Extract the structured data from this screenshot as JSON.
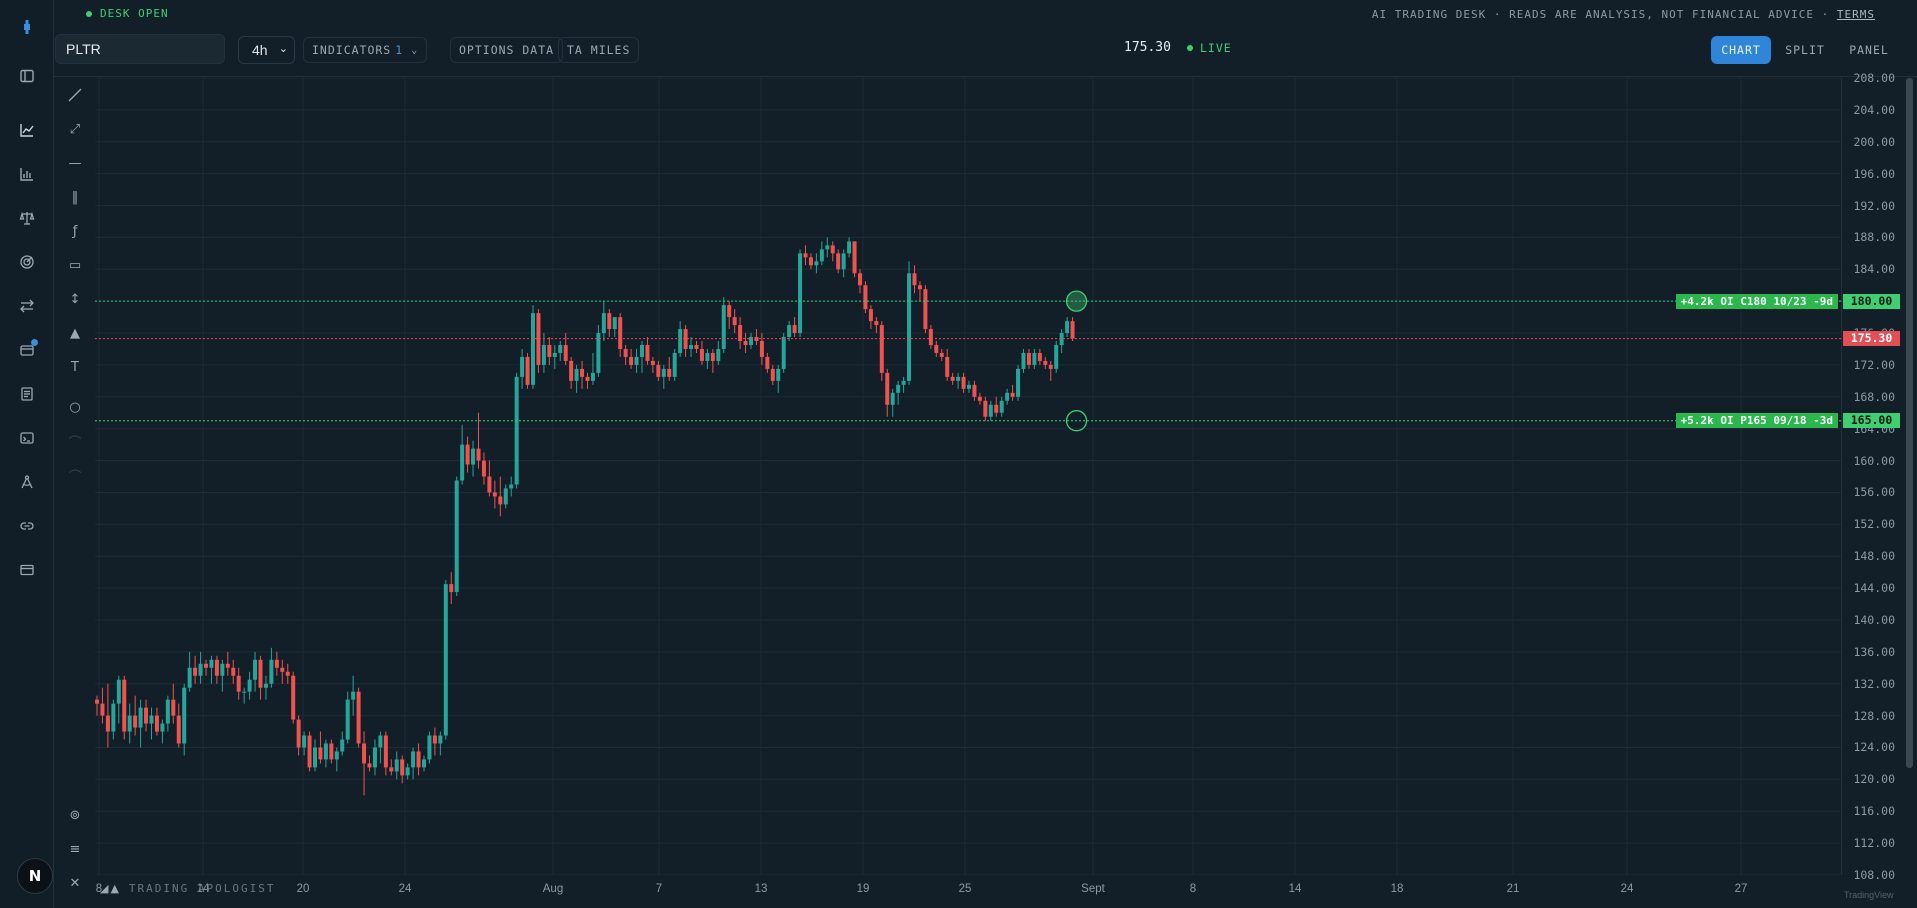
{
  "header": {
    "desk_status": "DESK OPEN",
    "disclaimer": "AI TRADING DESK · READS ARE ANALYSIS, NOT FINANCIAL ADVICE ·",
    "terms": "TERMS"
  },
  "toolbar": {
    "symbol": "PLTR",
    "timeframe": "4h",
    "indicators_label": "INDICATORS",
    "indicators_count": "1",
    "options_data": "OPTIONS DATA",
    "ta_miles": "TA MILES",
    "price": "175.30",
    "live": "LIVE",
    "views": {
      "chart": "CHART",
      "split": "SPLIT",
      "panel": "PANEL"
    }
  },
  "colors": {
    "up": "#26a69a",
    "down": "#ef5350",
    "accent": "#2f86d8",
    "live": "#3ecf72",
    "level_green": "#3ecf72",
    "current_red": "#e44f55"
  },
  "left_rail": {
    "icons": [
      "logo-icon",
      "sidebar-toggle-icon",
      "line-chart-icon",
      "bar-chart-icon",
      "scales-icon",
      "radar-icon",
      "swap-icon",
      "wallet-icon",
      "document-icon",
      "terminal-icon",
      "compass-icon",
      "link-icon",
      "card-icon"
    ],
    "avatar": "N"
  },
  "drawing_tools": {
    "icons": [
      "trend-line-icon",
      "ray-icon",
      "horizontal-line-icon",
      "vertical-line-icon",
      "fib-icon",
      "rectangle-icon",
      "measure-icon",
      "triangle-icon",
      "text-icon",
      "circle-icon",
      "brush-icon",
      "path-icon",
      "settings-icon",
      "list-icon",
      "close-icon"
    ]
  },
  "branding": {
    "name": "TRADING APOLOGIST",
    "watermark": "TradingView"
  },
  "chart_data": {
    "type": "candlestick",
    "symbol": "PLTR",
    "interval": "4h",
    "ylim": [
      108,
      208
    ],
    "y_ticks": [
      108,
      112,
      116,
      120,
      124,
      128,
      132,
      136,
      140,
      144,
      148,
      152,
      156,
      160,
      164,
      168,
      172,
      176,
      180,
      184,
      188,
      192,
      196,
      200,
      204,
      208
    ],
    "x_ticks": [
      "8",
      "14",
      "20",
      "24",
      "Aug",
      "7",
      "13",
      "19",
      "25",
      "Sept",
      "8",
      "14",
      "18",
      "21",
      "24",
      "27"
    ],
    "grid": true,
    "current_price": 175.3,
    "levels": [
      {
        "label": "+4.2k OI C180 10/23 -9d",
        "price": 180.0,
        "price_label": "180.00",
        "style": "dotted-green"
      },
      {
        "label": "+5.2k OI P165 09/18 -3d",
        "price": 165.0,
        "price_label": "165.00",
        "style": "dotted-green"
      }
    ],
    "candles": [
      [
        130,
        130.5,
        128,
        129.5
      ],
      [
        129.5,
        131.5,
        127,
        128
      ],
      [
        128,
        132,
        124,
        126
      ],
      [
        126,
        130,
        125,
        129.5
      ],
      [
        129.5,
        133,
        127,
        132.5
      ],
      [
        132.5,
        133,
        125,
        126
      ],
      [
        126,
        129.5,
        124.5,
        128
      ],
      [
        128,
        130.5,
        125.5,
        126.5
      ],
      [
        126.5,
        130,
        124,
        129
      ],
      [
        129,
        130,
        126,
        127
      ],
      [
        127,
        129,
        125,
        128
      ],
      [
        128,
        129,
        125.5,
        126
      ],
      [
        126,
        127.5,
        124.5,
        127
      ],
      [
        127,
        130.5,
        126,
        130
      ],
      [
        130,
        132,
        127,
        128
      ],
      [
        128,
        129.5,
        124,
        124.5
      ],
      [
        124.5,
        132,
        123,
        131.5
      ],
      [
        131.5,
        136,
        131,
        134
      ],
      [
        134,
        135.5,
        132,
        133
      ],
      [
        133,
        136,
        132,
        134.5
      ],
      [
        134.5,
        135,
        133,
        134
      ],
      [
        134,
        135.5,
        132,
        135
      ],
      [
        135,
        135.5,
        132,
        133
      ],
      [
        133,
        135,
        131,
        134.5
      ],
      [
        134.5,
        136,
        133,
        134
      ],
      [
        134,
        135,
        132,
        133
      ],
      [
        133,
        134,
        130,
        131
      ],
      [
        131,
        131.5,
        129.5,
        131
      ],
      [
        131,
        133.5,
        130,
        132.5
      ],
      [
        132.5,
        136,
        131,
        135
      ],
      [
        135,
        135.5,
        130,
        131.5
      ],
      [
        131.5,
        133,
        130,
        132
      ],
      [
        132,
        136.5,
        131.5,
        135
      ],
      [
        135,
        136,
        133,
        134
      ],
      [
        134,
        135,
        132,
        133.5
      ],
      [
        133.5,
        134.5,
        132,
        133
      ],
      [
        133,
        133.5,
        127,
        127.5
      ],
      [
        127.5,
        128,
        123,
        124
      ],
      [
        124,
        126,
        123,
        125.5
      ],
      [
        125.5,
        126,
        121,
        121.5
      ],
      [
        121.5,
        125,
        121,
        124
      ],
      [
        124,
        126,
        122,
        122.5
      ],
      [
        122.5,
        125,
        121.5,
        124.5
      ],
      [
        124.5,
        125,
        122,
        122.5
      ],
      [
        122.5,
        124,
        121,
        123.5
      ],
      [
        123.5,
        126,
        123,
        125
      ],
      [
        125,
        131,
        124.5,
        130
      ],
      [
        130,
        133,
        128,
        131
      ],
      [
        131,
        131.5,
        124,
        124.5
      ],
      [
        124.5,
        126,
        118,
        122
      ],
      [
        122,
        123,
        121,
        121.5
      ],
      [
        121.5,
        125,
        120.5,
        124
      ],
      [
        124,
        126,
        122,
        125.5
      ],
      [
        125.5,
        126,
        120.5,
        121.5
      ],
      [
        121.5,
        122.5,
        120.5,
        121
      ],
      [
        121,
        123.5,
        120,
        122.5
      ],
      [
        122.5,
        123,
        119.5,
        120.5
      ],
      [
        120.5,
        122,
        120,
        121.5
      ],
      [
        121.5,
        124,
        120,
        123.5
      ],
      [
        123.5,
        124.5,
        120.5,
        121.5
      ],
      [
        121.5,
        123,
        121,
        122.5
      ],
      [
        122.5,
        126,
        122,
        125.5
      ],
      [
        125.5,
        126.5,
        123,
        124.5
      ],
      [
        124.5,
        126,
        123,
        125.5
      ],
      [
        125.5,
        145,
        125,
        144.5
      ],
      [
        144.5,
        146,
        142,
        143.5
      ],
      [
        143.5,
        158,
        143,
        157.5
      ],
      [
        157.5,
        164.5,
        157,
        162
      ],
      [
        162,
        163,
        158.5,
        159.5
      ],
      [
        159.5,
        162.5,
        158,
        161.5
      ],
      [
        161.5,
        166,
        159,
        160
      ],
      [
        160,
        161,
        157,
        158
      ],
      [
        158,
        160,
        155.5,
        156
      ],
      [
        156,
        157.5,
        154,
        155.5
      ],
      [
        155.5,
        158,
        153,
        154.5
      ],
      [
        154.5,
        157,
        154,
        156.5
      ],
      [
        156.5,
        158,
        155.5,
        157
      ],
      [
        157,
        171,
        156.5,
        170.5
      ],
      [
        170.5,
        174,
        169,
        173
      ],
      [
        173,
        173.5,
        169,
        169.5
      ],
      [
        169.5,
        179.5,
        169,
        178.5
      ],
      [
        178.5,
        179,
        171,
        172
      ],
      [
        172,
        176,
        171,
        174.5
      ],
      [
        174.5,
        175.5,
        172,
        173
      ],
      [
        173,
        174.5,
        171.5,
        173.5
      ],
      [
        173.5,
        175,
        172.5,
        174.5
      ],
      [
        174.5,
        176,
        172,
        172.5
      ],
      [
        172.5,
        173,
        169,
        170
      ],
      [
        170,
        172,
        168.5,
        171.5
      ],
      [
        171.5,
        172.5,
        169,
        170.5
      ],
      [
        170.5,
        171,
        169,
        170
      ],
      [
        170,
        173.5,
        169.5,
        171
      ],
      [
        171,
        177,
        170.5,
        176
      ],
      [
        176,
        180,
        175,
        178.5
      ],
      [
        178.5,
        179,
        175.5,
        176.5
      ],
      [
        176.5,
        178,
        175.5,
        178
      ],
      [
        178,
        178.5,
        173,
        174
      ],
      [
        174,
        174.5,
        172,
        173
      ],
      [
        173,
        174,
        171.5,
        172
      ],
      [
        172,
        174,
        171,
        173
      ],
      [
        173,
        175,
        171,
        174.5
      ],
      [
        174.5,
        175.5,
        172,
        172.5
      ],
      [
        172.5,
        173,
        171,
        172
      ],
      [
        172,
        172.5,
        170,
        170.5
      ],
      [
        170.5,
        172,
        169,
        171.5
      ],
      [
        171.5,
        173,
        170,
        170.5
      ],
      [
        170.5,
        174,
        170,
        173.5
      ],
      [
        173.5,
        177.5,
        173,
        176.5
      ],
      [
        176.5,
        177,
        173,
        174
      ],
      [
        174,
        175.5,
        173,
        174.5
      ],
      [
        174.5,
        175,
        173.5,
        174
      ],
      [
        174,
        175,
        172,
        172.5
      ],
      [
        172.5,
        174,
        171.5,
        173.5
      ],
      [
        173.5,
        174,
        171,
        172.5
      ],
      [
        172.5,
        175,
        172,
        174
      ],
      [
        174,
        180.5,
        173.5,
        179.5
      ],
      [
        179.5,
        180,
        176.5,
        178
      ],
      [
        178,
        179,
        176,
        177
      ],
      [
        177,
        178,
        174,
        175
      ],
      [
        175,
        176,
        173.5,
        174.5
      ],
      [
        174.5,
        176,
        174,
        175.5
      ],
      [
        175.5,
        176.5,
        174.5,
        175
      ],
      [
        175,
        176,
        172,
        173
      ],
      [
        173,
        173.5,
        171,
        171.5
      ],
      [
        171.5,
        172,
        169.5,
        170
      ],
      [
        170,
        172,
        168.5,
        171.5
      ],
      [
        171.5,
        176,
        171,
        175.5
      ],
      [
        175.5,
        177.5,
        175,
        177
      ],
      [
        177,
        178,
        175.5,
        176
      ],
      [
        176,
        186.5,
        175.5,
        186
      ],
      [
        186,
        187,
        184.5,
        185.5
      ],
      [
        185.5,
        186,
        184,
        184.5
      ],
      [
        184.5,
        186,
        183.5,
        185
      ],
      [
        185,
        187.5,
        184.5,
        186.5
      ],
      [
        186.5,
        188,
        185.5,
        187
      ],
      [
        187,
        187.5,
        185,
        186
      ],
      [
        186,
        186.5,
        183.5,
        184
      ],
      [
        184,
        186.5,
        183,
        186
      ],
      [
        186,
        188,
        185.5,
        187.5
      ],
      [
        187.5,
        187.5,
        183,
        183.5
      ],
      [
        183.5,
        184,
        181,
        182
      ],
      [
        182,
        182.5,
        178.5,
        179
      ],
      [
        179,
        179.5,
        176.5,
        177.5
      ],
      [
        177.5,
        178,
        176,
        177
      ],
      [
        177,
        177.5,
        170,
        171
      ],
      [
        171,
        171.5,
        165.5,
        167
      ],
      [
        167,
        169,
        165.5,
        168.5
      ],
      [
        168.5,
        170,
        167,
        169.5
      ],
      [
        169.5,
        170.5,
        168.5,
        170
      ],
      [
        170,
        185,
        169.5,
        183.5
      ],
      [
        183.5,
        184.5,
        181,
        182
      ],
      [
        182,
        182.5,
        180,
        181.5
      ],
      [
        181.5,
        182,
        176,
        176.5
      ],
      [
        176.5,
        177,
        174,
        174.5
      ],
      [
        174.5,
        175,
        173,
        173.5
      ],
      [
        173.5,
        174,
        172.5,
        173
      ],
      [
        173,
        174,
        170,
        170.5
      ],
      [
        170.5,
        171,
        169.5,
        170
      ],
      [
        170,
        171,
        169,
        170.5
      ],
      [
        170.5,
        171,
        168.5,
        169
      ],
      [
        169,
        170,
        168.5,
        169.5
      ],
      [
        169.5,
        170,
        167.5,
        168
      ],
      [
        168,
        168.5,
        167,
        167.5
      ],
      [
        167.5,
        168,
        165,
        165.5
      ],
      [
        165.5,
        167.5,
        165,
        167
      ],
      [
        167,
        168,
        165.5,
        166
      ],
      [
        166,
        168,
        165.5,
        167.5
      ],
      [
        167.5,
        169,
        167,
        168.5
      ],
      [
        168.5,
        169.5,
        167.5,
        168
      ],
      [
        168,
        172,
        167.5,
        171.5
      ],
      [
        171.5,
        174,
        171,
        173.5
      ],
      [
        173.5,
        174,
        171.5,
        172
      ],
      [
        172,
        174,
        171.5,
        173.5
      ],
      [
        173.5,
        174,
        172,
        172.5
      ],
      [
        172.5,
        173,
        171.5,
        172
      ],
      [
        172,
        172.5,
        170,
        171.5
      ],
      [
        171.5,
        175,
        171,
        174.5
      ],
      [
        174.5,
        176.5,
        173.5,
        176
      ],
      [
        176,
        178,
        175.5,
        177.5
      ],
      [
        177.5,
        178,
        175,
        175.3
      ]
    ]
  }
}
